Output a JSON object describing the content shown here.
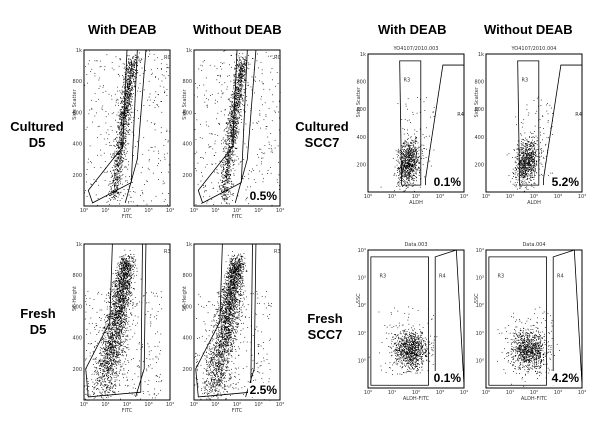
{
  "headers": {
    "left_with": "With DEAB",
    "left_without": "Without DEAB",
    "right_with": "With DEAB",
    "right_without": "Without DEAB"
  },
  "row_labels": {
    "left_top": [
      "Cultured",
      "D5"
    ],
    "left_bottom": [
      "Fresh",
      "D5"
    ],
    "right_top": [
      "Cultured",
      "SCC7"
    ],
    "right_bottom": [
      "Fresh",
      "SCC7"
    ]
  },
  "panels": [
    {
      "id": "d5-cultured-with",
      "xlabel": "FITC",
      "ylabel": "Side Scatter",
      "yticks": [
        "200",
        "400",
        "600",
        "800",
        "1k"
      ],
      "xticks": [
        "10⁰",
        "10¹",
        "10²",
        "10³",
        "10⁴"
      ],
      "title": "",
      "region_labels": [
        "R0"
      ],
      "percent": ""
    },
    {
      "id": "d5-cultured-without",
      "xlabel": "FITC",
      "ylabel": "Side Scatter",
      "yticks": [
        "200",
        "400",
        "600",
        "800",
        "1k"
      ],
      "xticks": [
        "10⁰",
        "10¹",
        "10²",
        "10³",
        "10⁴"
      ],
      "title": "",
      "region_labels": [
        "R0"
      ],
      "percent": "0.5%"
    },
    {
      "id": "d5-fresh-with",
      "xlabel": "FITC",
      "ylabel": "SC-Height",
      "yticks": [
        "200",
        "400",
        "600",
        "800",
        "1k"
      ],
      "xticks": [
        "10⁰",
        "10¹",
        "10²",
        "10³",
        "10⁴"
      ],
      "title": "",
      "region_labels": [
        "R3"
      ],
      "percent": ""
    },
    {
      "id": "d5-fresh-without",
      "xlabel": "FITC",
      "ylabel": "SC-Height",
      "yticks": [
        "200",
        "400",
        "600",
        "800",
        "1k"
      ],
      "xticks": [
        "10⁰",
        "10¹",
        "10²",
        "10³",
        "10⁴"
      ],
      "title": "",
      "region_labels": [
        "R3"
      ],
      "percent": "2.5%"
    },
    {
      "id": "scc7-cultured-with",
      "xlabel": "ALDH",
      "ylabel": "Side Scatter",
      "yticks": [
        "200",
        "400",
        "600",
        "800",
        "1k"
      ],
      "xticks": [
        "10⁰",
        "10¹",
        "10²",
        "10³",
        "10⁴"
      ],
      "title": "YO4107/2010.003",
      "region_labels": [
        "R3",
        "R4"
      ],
      "percent": "0.1%"
    },
    {
      "id": "scc7-cultured-without",
      "xlabel": "ALDH",
      "ylabel": "Side Scatter",
      "yticks": [
        "200",
        "400",
        "600",
        "800",
        "1k"
      ],
      "xticks": [
        "10⁰",
        "10¹",
        "10²",
        "10³",
        "10⁴"
      ],
      "title": "YO4107/2010.004",
      "region_labels": [
        "R3",
        "R4"
      ],
      "percent": "5.2%"
    },
    {
      "id": "scc7-fresh-with",
      "xlabel": "ALDH-FITC",
      "ylabel": "SSC",
      "yticks": [
        "10⁰",
        "10¹",
        "10²",
        "10³",
        "10⁴"
      ],
      "xticks": [
        "10⁰",
        "10¹",
        "10²",
        "10³",
        "10⁴"
      ],
      "title": "Data.003",
      "region_labels": [
        "R3",
        "R4"
      ],
      "percent": "0.1%"
    },
    {
      "id": "scc7-fresh-without",
      "xlabel": "ALDH-FITC",
      "ylabel": "SSC",
      "yticks": [
        "10⁰",
        "10¹",
        "10²",
        "10³",
        "10⁴"
      ],
      "xticks": [
        "10⁰",
        "10¹",
        "10²",
        "10³",
        "10⁴"
      ],
      "title": "Data.004",
      "region_labels": [
        "R3",
        "R4"
      ],
      "percent": "4.2%"
    }
  ]
}
